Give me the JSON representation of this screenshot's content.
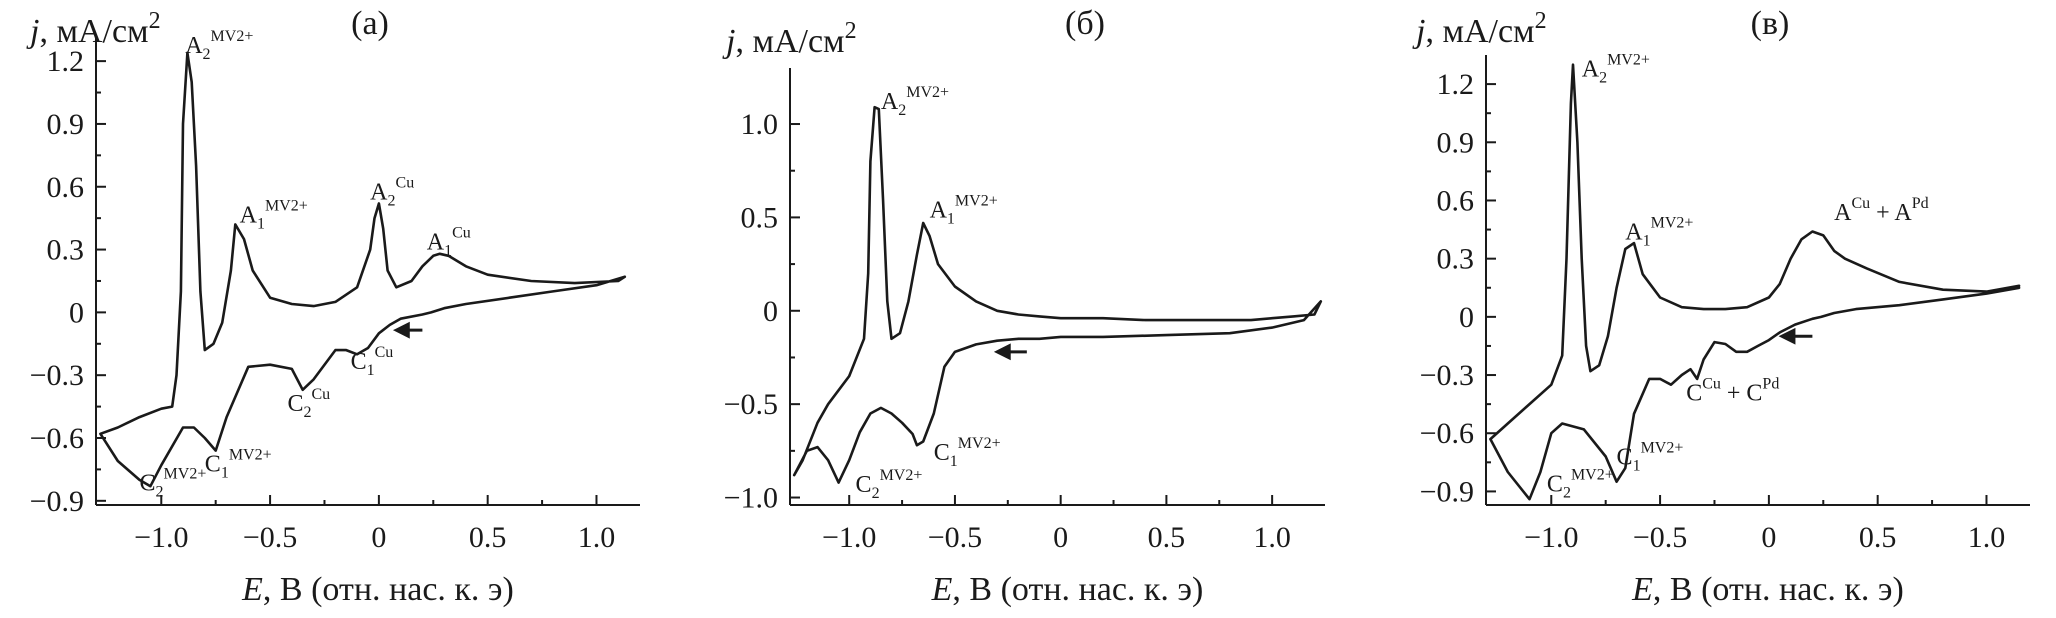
{
  "chart_data": [
    {
      "type": "line",
      "panel_label": "(а)",
      "ylabel_italic": "j",
      "ylabel_rest": ", мА/см",
      "ylabel_sup": "2",
      "xlabel_italic": "E",
      "xlabel_rest": ", В (отн. нас. к. э)",
      "xlim": [
        -1.3,
        1.2
      ],
      "ylim": [
        -0.92,
        1.32
      ],
      "x_ticks": [
        -1.0,
        -0.5,
        0,
        0.5,
        1.0
      ],
      "x_tick_labels": [
        "−1.0",
        "−0.5",
        "0",
        "0.5",
        "1.0"
      ],
      "y_ticks": [
        1.2,
        0.9,
        0.6,
        0.3,
        0,
        -0.3,
        -0.6,
        -0.9
      ],
      "y_tick_labels": [
        "1.2",
        "0.9",
        "0.6",
        "0.3",
        "0",
        "−0.3",
        "−0.6",
        "−0.9"
      ],
      "series": [
        {
          "x": [
            1.13,
            1.0,
            0.8,
            0.6,
            0.4,
            0.3,
            0.24,
            0.2,
            0.1,
            0.05,
            0.0,
            -0.05,
            -0.1,
            -0.15,
            -0.2,
            -0.3,
            -0.35,
            -0.4,
            -0.5,
            -0.6,
            -0.7,
            -0.75,
            -0.8,
            -0.85,
            -0.9,
            -1.0,
            -1.05,
            -1.1,
            -1.2,
            -1.28,
            -1.2,
            -1.1,
            -1.0,
            -0.95,
            -0.93,
            -0.91,
            -0.9,
            -0.88,
            -0.86,
            -0.84,
            -0.82,
            -0.8,
            -0.76,
            -0.72,
            -0.68,
            -0.66,
            -0.62,
            -0.58,
            -0.5,
            -0.4,
            -0.3,
            -0.2,
            -0.1,
            -0.04,
            -0.02,
            0.0,
            0.02,
            0.04,
            0.08,
            0.15,
            0.2,
            0.25,
            0.28,
            0.32,
            0.4,
            0.5,
            0.7,
            0.9,
            1.1,
            1.13
          ],
          "y": [
            0.17,
            0.13,
            0.1,
            0.07,
            0.04,
            0.02,
            0.0,
            -0.01,
            -0.03,
            -0.06,
            -0.1,
            -0.17,
            -0.2,
            -0.18,
            -0.18,
            -0.32,
            -0.37,
            -0.27,
            -0.25,
            -0.26,
            -0.5,
            -0.66,
            -0.6,
            -0.55,
            -0.55,
            -0.73,
            -0.83,
            -0.8,
            -0.71,
            -0.58,
            -0.55,
            -0.5,
            -0.46,
            -0.45,
            -0.3,
            0.1,
            0.9,
            1.24,
            1.1,
            0.7,
            0.1,
            -0.18,
            -0.15,
            -0.05,
            0.2,
            0.42,
            0.35,
            0.2,
            0.07,
            0.04,
            0.03,
            0.05,
            0.12,
            0.3,
            0.45,
            0.52,
            0.4,
            0.2,
            0.12,
            0.15,
            0.22,
            0.27,
            0.28,
            0.27,
            0.22,
            0.18,
            0.15,
            0.14,
            0.15,
            0.17
          ]
        }
      ],
      "annotations": [
        {
          "base": "A",
          "sub": "2",
          "sup": "MV2+",
          "x": -0.89,
          "y": 1.24
        },
        {
          "base": "A",
          "sub": "1",
          "sup": "MV2+",
          "x": -0.64,
          "y": 0.43
        },
        {
          "base": "A",
          "sub": "2",
          "sup": "Cu",
          "x": -0.04,
          "y": 0.54
        },
        {
          "base": "A",
          "sub": "1",
          "sup": "Cu",
          "x": 0.22,
          "y": 0.3
        },
        {
          "base": "C",
          "sub": "1",
          "sup": "Cu",
          "x": -0.13,
          "y": -0.27
        },
        {
          "base": "C",
          "sub": "2",
          "sup": "Cu",
          "x": -0.42,
          "y": -0.47
        },
        {
          "base": "C",
          "sub": "2",
          "sup": "MV2+",
          "x": -1.1,
          "y": -0.85
        },
        {
          "base": "C",
          "sub": "1",
          "sup": "MV2+",
          "x": -0.8,
          "y": -0.76
        }
      ],
      "arrow": {
        "from": [
          0.2,
          -0.085
        ],
        "to": [
          0.08,
          -0.085
        ]
      }
    },
    {
      "type": "line",
      "panel_label": "(б)",
      "ylabel_italic": "j",
      "ylabel_rest": ", мА/см",
      "ylabel_sup": "2",
      "xlabel_italic": "E",
      "xlabel_rest": ", В (отн. нас. к. э)",
      "xlim": [
        -1.28,
        1.25
      ],
      "ylim": [
        -1.04,
        1.3
      ],
      "x_ticks": [
        -1.0,
        -0.5,
        0,
        0.5,
        1.0
      ],
      "x_tick_labels": [
        "−1.0",
        "−0.5",
        "0",
        "0.5",
        "1.0"
      ],
      "y_ticks": [
        1.0,
        0.5,
        0,
        -0.5,
        -1.0
      ],
      "y_tick_labels": [
        "1.0",
        "0.5",
        "0",
        "−0.5",
        "−1.0"
      ],
      "series": [
        {
          "x": [
            1.23,
            1.15,
            1.0,
            0.8,
            0.5,
            0.2,
            0.0,
            -0.1,
            -0.2,
            -0.3,
            -0.4,
            -0.5,
            -0.55,
            -0.6,
            -0.65,
            -0.68,
            -0.7,
            -0.75,
            -0.8,
            -0.85,
            -0.9,
            -0.95,
            -1.0,
            -1.05,
            -1.1,
            -1.15,
            -1.2,
            -1.26,
            -1.22,
            -1.15,
            -1.1,
            -1.0,
            -0.93,
            -0.91,
            -0.9,
            -0.88,
            -0.86,
            -0.84,
            -0.82,
            -0.8,
            -0.76,
            -0.72,
            -0.68,
            -0.65,
            -0.62,
            -0.58,
            -0.5,
            -0.4,
            -0.3,
            -0.2,
            -0.1,
            0.0,
            0.2,
            0.4,
            0.6,
            0.8,
            0.9,
            1.0,
            1.1,
            1.2,
            1.23
          ],
          "y": [
            0.05,
            -0.05,
            -0.09,
            -0.12,
            -0.13,
            -0.14,
            -0.14,
            -0.15,
            -0.15,
            -0.16,
            -0.18,
            -0.22,
            -0.3,
            -0.55,
            -0.7,
            -0.72,
            -0.66,
            -0.6,
            -0.55,
            -0.52,
            -0.55,
            -0.65,
            -0.8,
            -0.92,
            -0.8,
            -0.73,
            -0.75,
            -0.88,
            -0.8,
            -0.6,
            -0.5,
            -0.35,
            -0.15,
            0.2,
            0.8,
            1.09,
            1.08,
            0.6,
            0.05,
            -0.15,
            -0.12,
            0.05,
            0.3,
            0.47,
            0.4,
            0.25,
            0.13,
            0.05,
            0.0,
            -0.02,
            -0.03,
            -0.04,
            -0.04,
            -0.05,
            -0.05,
            -0.05,
            -0.05,
            -0.04,
            -0.03,
            -0.02,
            0.05
          ]
        }
      ],
      "annotations": [
        {
          "base": "A",
          "sub": "2",
          "sup": "MV2+",
          "x": -0.85,
          "y": 1.08
        },
        {
          "base": "A",
          "sub": "1",
          "sup": "MV2+",
          "x": -0.62,
          "y": 0.5
        },
        {
          "base": "C",
          "sub": "2",
          "sup": "MV2+",
          "x": -0.97,
          "y": -0.97
        },
        {
          "base": "C",
          "sub": "1",
          "sup": "MV2+",
          "x": -0.6,
          "y": -0.8
        }
      ],
      "arrow": {
        "from": [
          -0.16,
          -0.22
        ],
        "to": [
          -0.3,
          -0.22
        ]
      }
    },
    {
      "type": "line",
      "panel_label": "(в)",
      "ylabel_italic": "j",
      "ylabel_rest": ", мА/см",
      "ylabel_sup": "2",
      "xlabel_italic": "E",
      "xlabel_rest": ", В (отн. нас. к. э)",
      "xlim": [
        -1.3,
        1.2
      ],
      "ylim": [
        -0.97,
        1.35
      ],
      "x_ticks": [
        -1.0,
        -0.5,
        0,
        0.5,
        1.0
      ],
      "x_tick_labels": [
        "−1.0",
        "−0.5",
        "0",
        "0.5",
        "1.0"
      ],
      "y_ticks": [
        1.2,
        0.9,
        0.6,
        0.3,
        0,
        -0.3,
        -0.6,
        -0.9
      ],
      "y_tick_labels": [
        "1.2",
        "0.9",
        "0.6",
        "0.3",
        "0",
        "−0.3",
        "−0.6",
        "−0.9"
      ],
      "series": [
        {
          "x": [
            1.15,
            1.0,
            0.8,
            0.6,
            0.4,
            0.3,
            0.24,
            0.2,
            0.12,
            0.05,
            0.0,
            -0.05,
            -0.1,
            -0.15,
            -0.2,
            -0.25,
            -0.3,
            -0.33,
            -0.36,
            -0.4,
            -0.45,
            -0.5,
            -0.55,
            -0.62,
            -0.66,
            -0.7,
            -0.75,
            -0.85,
            -0.95,
            -1.0,
            -1.05,
            -1.1,
            -1.2,
            -1.28,
            -1.2,
            -1.1,
            -1.0,
            -0.95,
            -0.93,
            -0.91,
            -0.9,
            -0.88,
            -0.86,
            -0.84,
            -0.82,
            -0.78,
            -0.74,
            -0.7,
            -0.66,
            -0.62,
            -0.58,
            -0.5,
            -0.4,
            -0.3,
            -0.2,
            -0.1,
            0.0,
            0.05,
            0.1,
            0.15,
            0.2,
            0.25,
            0.3,
            0.35,
            0.45,
            0.6,
            0.8,
            1.0,
            1.15
          ],
          "y": [
            0.15,
            0.12,
            0.09,
            0.06,
            0.04,
            0.02,
            0.0,
            -0.01,
            -0.04,
            -0.08,
            -0.12,
            -0.15,
            -0.18,
            -0.18,
            -0.14,
            -0.13,
            -0.22,
            -0.32,
            -0.27,
            -0.3,
            -0.35,
            -0.32,
            -0.32,
            -0.5,
            -0.78,
            -0.85,
            -0.72,
            -0.58,
            -0.55,
            -0.6,
            -0.8,
            -0.94,
            -0.8,
            -0.63,
            -0.55,
            -0.45,
            -0.35,
            -0.2,
            0.3,
            1.1,
            1.3,
            0.9,
            0.3,
            -0.15,
            -0.28,
            -0.25,
            -0.1,
            0.15,
            0.35,
            0.38,
            0.22,
            0.1,
            0.05,
            0.04,
            0.04,
            0.05,
            0.1,
            0.17,
            0.3,
            0.4,
            0.44,
            0.42,
            0.34,
            0.3,
            0.25,
            0.18,
            0.14,
            0.13,
            0.16
          ]
        }
      ],
      "annotations": [
        {
          "base": "A",
          "sub": "2",
          "sup": "MV2+",
          "x": -0.86,
          "y": 1.24
        },
        {
          "base": "A",
          "sub": "1",
          "sup": "MV2+",
          "x": -0.66,
          "y": 0.4
        },
        {
          "base": "C",
          "sub": "2",
          "sup": "MV2+",
          "x": -1.02,
          "y": -0.9
        },
        {
          "base": "C",
          "sub": "1",
          "sup": "MV2+",
          "x": -0.7,
          "y": -0.76
        }
      ],
      "text_annotations": [
        {
          "parts": [
            "A",
            "Cu",
            " + A",
            "Pd"
          ],
          "x": 0.3,
          "y": 0.5
        },
        {
          "parts": [
            "C",
            "Cu",
            " + C",
            "Pd"
          ],
          "x": -0.38,
          "y": -0.43
        }
      ],
      "arrow": {
        "from": [
          0.2,
          -0.1
        ],
        "to": [
          0.06,
          -0.1
        ]
      }
    }
  ]
}
